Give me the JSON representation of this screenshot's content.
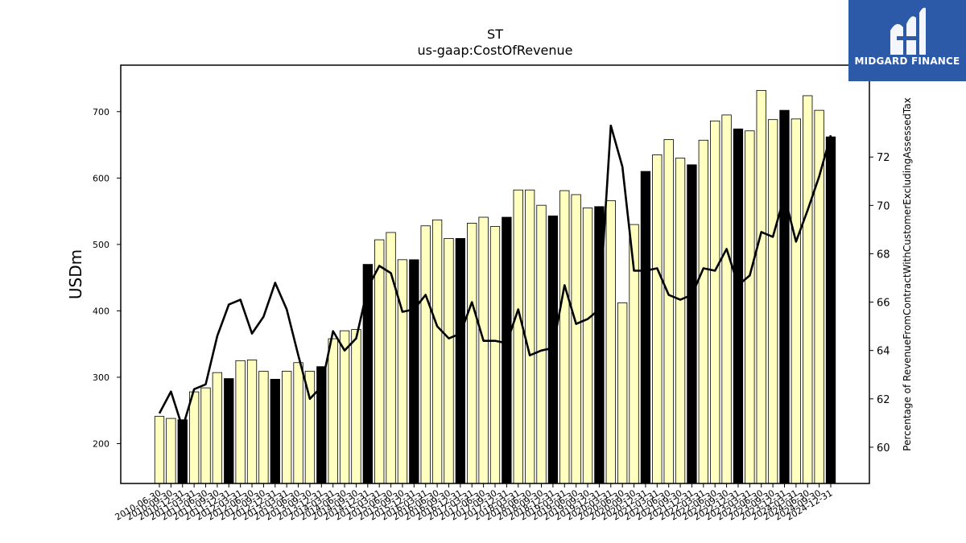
{
  "chart_data": {
    "type": "bar",
    "title": "ST",
    "subtitle": "us-gaap:CostOfRevenue",
    "ylabel": "USDm",
    "y2label": "Percentage of RevenueFromContractWithCustomerExcludingAssessedTax",
    "ylim": [
      140,
      770
    ],
    "y2lim": [
      58.5,
      75.8
    ],
    "yticks": [
      200,
      300,
      400,
      500,
      600,
      700
    ],
    "y2ticks": [
      60,
      62,
      64,
      66,
      68,
      70,
      72
    ],
    "grid": false,
    "colors": {
      "bar_default": "#ffffc0",
      "bar_highlight": "#000000",
      "line": "#000000"
    },
    "categories": [
      "2010-06-30",
      "2010-09-30",
      "2010-12-31",
      "2011-03-31",
      "2011-06-30",
      "2011-09-30",
      "2011-12-31",
      "2012-03-31",
      "2012-06-30",
      "2012-09-30",
      "2012-12-31",
      "2013-03-31",
      "2013-06-30",
      "2013-09-30",
      "2013-12-31",
      "2014-03-31",
      "2014-06-30",
      "2014-09-30",
      "2014-12-31",
      "2015-03-31",
      "2015-06-30",
      "2015-09-30",
      "2015-12-31",
      "2016-03-31",
      "2016-06-30",
      "2016-09-30",
      "2016-12-31",
      "2017-03-31",
      "2017-06-30",
      "2017-09-30",
      "2017-12-31",
      "2018-03-31",
      "2018-06-30",
      "2018-09-30",
      "2018-12-31",
      "2019-03-31",
      "2019-06-30",
      "2019-09-30",
      "2019-12-31",
      "2020-03-31",
      "2020-06-30",
      "2020-09-30",
      "2020-12-31",
      "2021-03-31",
      "2021-06-30",
      "2021-09-30",
      "2021-12-31",
      "2022-03-31",
      "2022-06-30",
      "2022-09-30",
      "2022-12-31",
      "2023-03-31",
      "2023-06-30",
      "2023-09-30",
      "2023-12-31",
      "2024-03-31",
      "2024-06-30",
      "2024-09-30",
      "2024-12-31"
    ],
    "values": [
      241,
      238,
      236,
      278,
      284,
      307,
      298,
      325,
      326,
      309,
      297,
      309,
      322,
      309,
      316,
      358,
      370,
      372,
      470,
      507,
      518,
      477,
      477,
      528,
      537,
      509,
      509,
      532,
      541,
      527,
      541,
      582,
      582,
      559,
      543,
      581,
      575,
      555,
      557,
      566,
      412,
      530,
      610,
      635,
      658,
      630,
      620,
      657,
      686,
      695,
      674,
      671,
      732,
      688,
      702,
      689,
      724,
      702,
      662
    ],
    "highlight": [
      false,
      false,
      true,
      false,
      false,
      false,
      true,
      false,
      false,
      false,
      true,
      false,
      false,
      false,
      true,
      false,
      false,
      false,
      true,
      false,
      false,
      false,
      true,
      false,
      false,
      false,
      true,
      false,
      false,
      false,
      true,
      false,
      false,
      false,
      true,
      false,
      false,
      false,
      true,
      false,
      false,
      false,
      true,
      false,
      false,
      false,
      true,
      false,
      false,
      false,
      true,
      false,
      false,
      false,
      true,
      false,
      false,
      false,
      true
    ],
    "line_series": {
      "values": [
        61.4,
        62.3,
        60.8,
        62.4,
        62.6,
        64.6,
        65.9,
        66.1,
        64.7,
        65.4,
        66.8,
        65.7,
        63.8,
        62.0,
        62.5,
        64.8,
        64.0,
        64.5,
        66.6,
        67.5,
        67.2,
        65.6,
        65.7,
        66.3,
        65.0,
        64.5,
        64.7,
        66.0,
        64.4,
        64.4,
        64.3,
        65.7,
        63.8,
        64.0,
        64.1,
        66.7,
        65.1,
        65.3,
        65.7,
        73.3,
        71.6,
        67.3,
        67.3,
        67.4,
        66.3,
        66.1,
        66.3,
        67.4,
        67.3,
        68.2,
        66.7,
        67.1,
        68.9,
        68.7,
        70.4,
        68.5,
        69.8,
        71.2,
        72.9
      ]
    }
  },
  "logo": {
    "text": "MIDGARD FINANCE"
  }
}
